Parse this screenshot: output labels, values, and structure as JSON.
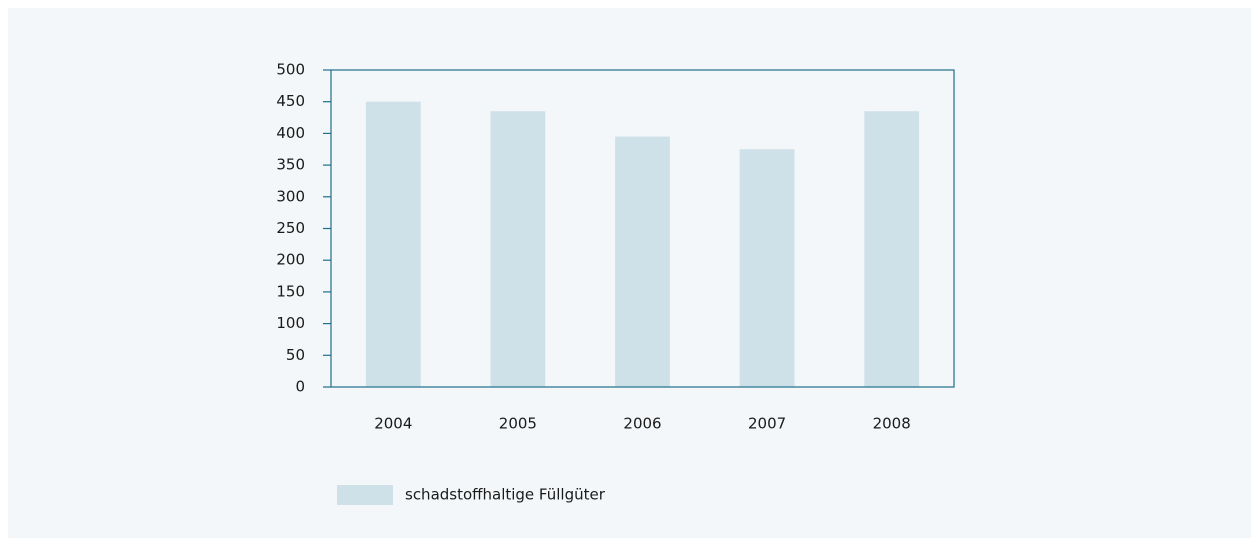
{
  "chart_data": {
    "type": "bar",
    "categories": [
      "2004",
      "2005",
      "2006",
      "2007",
      "2008"
    ],
    "series": [
      {
        "name": "schadstoffhaltige Füllgüter",
        "color": "#cfe1e8",
        "values": [
          450,
          435,
          395,
          375,
          435
        ]
      }
    ],
    "ylim": [
      0,
      500
    ],
    "yticks": [
      0,
      50,
      100,
      150,
      200,
      250,
      300,
      350,
      400,
      450,
      500
    ],
    "grid": false,
    "legend": "bottom"
  }
}
